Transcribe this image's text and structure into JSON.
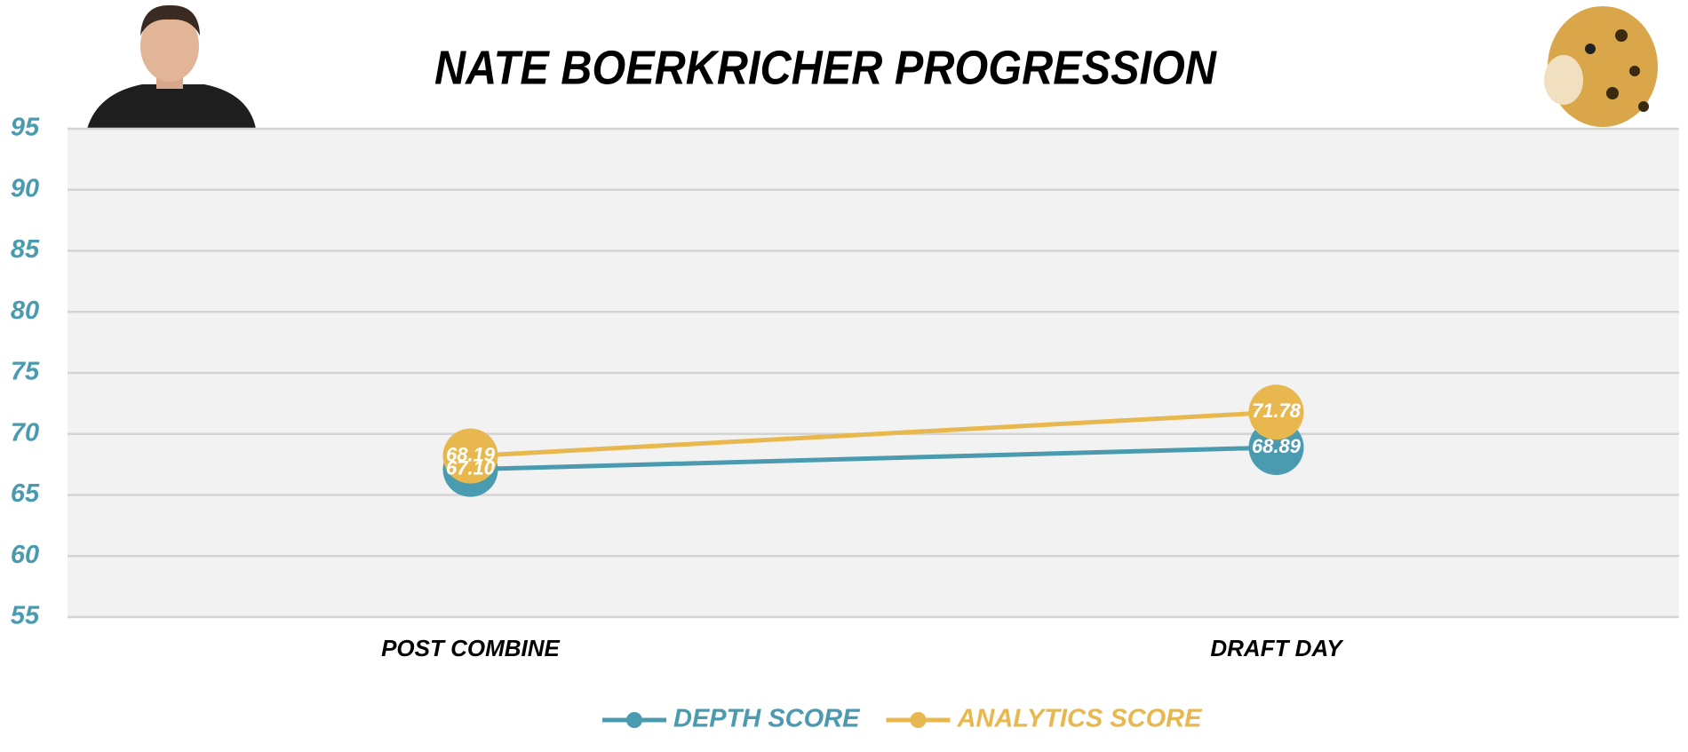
{
  "chart_data": {
    "type": "line",
    "title": "NATE BOERKRICHER PROGRESSION",
    "categories": [
      "POST COMBINE",
      "DRAFT DAY"
    ],
    "series": [
      {
        "name": "DEPTH SCORE",
        "color": "#4a9bb0",
        "values": [
          67.1,
          68.89
        ],
        "value_labels": [
          "67.10",
          "68.89"
        ]
      },
      {
        "name": "ANALYTICS SCORE",
        "color": "#e8b84f",
        "values": [
          68.19,
          71.78
        ],
        "value_labels": [
          "68.19",
          "71.78"
        ]
      }
    ],
    "ylim": [
      55,
      95
    ],
    "yticks": [
      55,
      60,
      65,
      70,
      75,
      80,
      85,
      90,
      95
    ],
    "grid": true,
    "legend": "bottom"
  }
}
